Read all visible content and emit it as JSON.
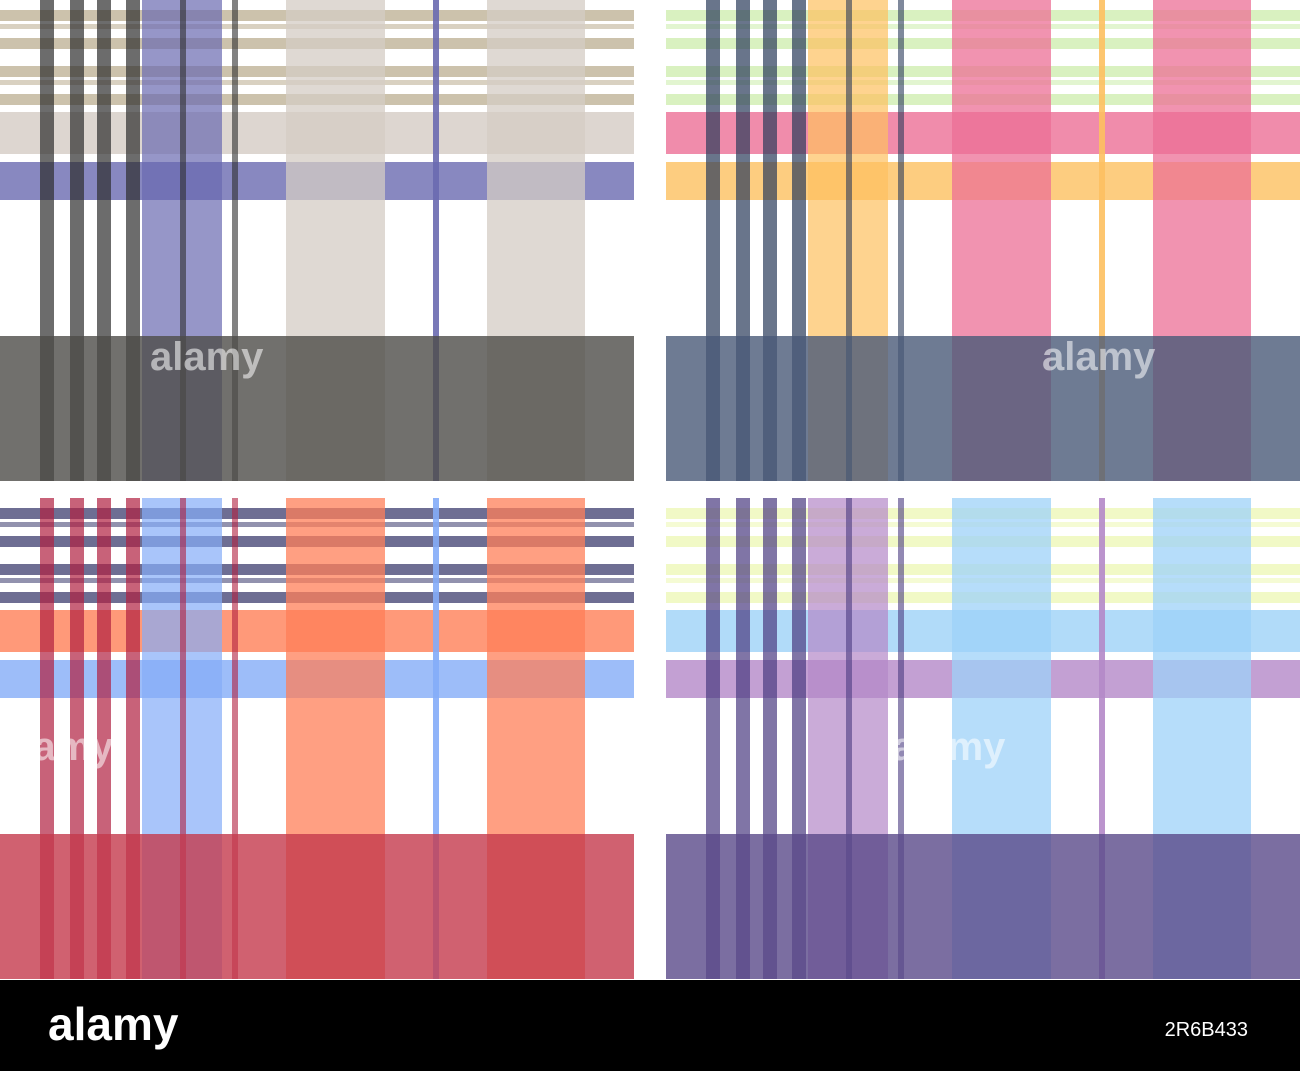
{
  "watermark": "alamy",
  "footer": {
    "logo": "alamy",
    "image_id": "2R6B433"
  }
}
